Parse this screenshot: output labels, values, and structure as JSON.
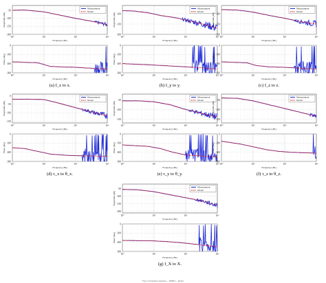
{
  "figure": {
    "caption_partial": "Fig. 6.  Frequency response ... MIMO ... model",
    "common": {
      "mag_ylabel": "Magnitude [dB]",
      "phase_ylabel": "Phase [deg]",
      "xlabel": "Frequency [Hz]",
      "legend": [
        "Measurement",
        "Model"
      ],
      "colors": {
        "measurement": "#1f2bd6",
        "model": "#e01818"
      },
      "x_range_log10": [
        0,
        3
      ],
      "x_tick_labels": [
        "10⁰",
        "10¹",
        "10²",
        "10³"
      ],
      "phase_ticks": [
        "0",
        "-100",
        "-200",
        "-300"
      ],
      "phase_range": [
        -300,
        0
      ]
    }
  },
  "chart_data": [
    {
      "id": "a",
      "type": "line",
      "caption": "(a)  f_x to x.",
      "mag_ticks": [
        "-50",
        "-100",
        "-150",
        "-200"
      ],
      "mag_range": [
        -200,
        -20
      ],
      "magnitude": [
        [
          0,
          -50
        ],
        [
          0.3,
          -48
        ],
        [
          0.5,
          -50
        ],
        [
          1.0,
          -60
        ],
        [
          1.5,
          -80
        ],
        [
          2.0,
          -100
        ],
        [
          2.5,
          -118
        ],
        [
          3.0,
          -140
        ]
      ],
      "phase": [
        [
          0,
          -180
        ],
        [
          0.8,
          -190
        ],
        [
          1.0,
          -210
        ],
        [
          1.2,
          -230
        ],
        [
          1.5,
          -235
        ],
        [
          2.0,
          -240
        ],
        [
          2.5,
          -250
        ],
        [
          3.0,
          -260
        ]
      ],
      "mag_noise_from": 2.6,
      "phase_noise_from": 2.6
    },
    {
      "id": "b",
      "type": "line",
      "caption": "(b)  f_y to y.",
      "mag_ticks": [
        "-100",
        "-150",
        "-200"
      ],
      "mag_range": [
        -200,
        -60
      ],
      "magnitude": [
        [
          0,
          -85
        ],
        [
          0.3,
          -86
        ],
        [
          0.8,
          -95
        ],
        [
          1.2,
          -108
        ],
        [
          1.7,
          -120
        ],
        [
          2.2,
          -138
        ],
        [
          2.6,
          -152
        ],
        [
          3.0,
          -170
        ]
      ],
      "phase": [
        [
          0,
          -200
        ],
        [
          1.0,
          -215
        ],
        [
          1.5,
          -225
        ],
        [
          2.0,
          -235
        ],
        [
          2.5,
          -245
        ],
        [
          3.0,
          -260
        ]
      ],
      "mag_noise_from": 1.9,
      "phase_noise_from": 2.2
    },
    {
      "id": "c",
      "type": "line",
      "caption": "(c)  f_z to z.",
      "mag_ticks": [
        "-100",
        "-150",
        "-200"
      ],
      "mag_range": [
        -200,
        -60
      ],
      "magnitude": [
        [
          0,
          -80
        ],
        [
          0.5,
          -82
        ],
        [
          1.0,
          -92
        ],
        [
          1.5,
          -108
        ],
        [
          2.0,
          -122
        ],
        [
          2.5,
          -138
        ],
        [
          3.0,
          -150
        ]
      ],
      "phase": [
        [
          0,
          -180
        ],
        [
          0.8,
          -190
        ],
        [
          1.1,
          -220
        ],
        [
          1.5,
          -235
        ],
        [
          2.0,
          -240
        ],
        [
          2.5,
          -250
        ],
        [
          3.0,
          -260
        ]
      ],
      "mag_noise_from": 2.3,
      "phase_noise_from": 2.3
    },
    {
      "id": "d",
      "type": "line",
      "caption": "(d)  τ_x to θ_x.",
      "mag_ticks": [
        "0",
        "-50",
        "-100",
        "-150"
      ],
      "mag_range": [
        -160,
        10
      ],
      "magnitude": [
        [
          0,
          -20
        ],
        [
          0.5,
          -20
        ],
        [
          1.0,
          -22
        ],
        [
          1.4,
          -40
        ],
        [
          1.8,
          -60
        ],
        [
          2.2,
          -80
        ],
        [
          2.6,
          -100
        ],
        [
          3.0,
          -118
        ]
      ],
      "phase": [
        [
          0,
          -150
        ],
        [
          0.4,
          -160
        ],
        [
          0.8,
          -190
        ],
        [
          1.2,
          -220
        ],
        [
          1.8,
          -235
        ],
        [
          3.0,
          -245
        ]
      ],
      "mag_noise_from": 2.2,
      "phase_noise_from": 2.2
    },
    {
      "id": "e",
      "type": "line",
      "caption": "(e)  τ_y to θ_y.",
      "mag_ticks": [
        "-50",
        "-100",
        "-150"
      ],
      "mag_range": [
        -170,
        -20
      ],
      "magnitude": [
        [
          0,
          -55
        ],
        [
          0.5,
          -55
        ],
        [
          1.0,
          -60
        ],
        [
          1.5,
          -75
        ],
        [
          2.0,
          -100
        ],
        [
          2.5,
          -120
        ],
        [
          3.0,
          -140
        ]
      ],
      "phase": [
        [
          0,
          -120
        ],
        [
          0.8,
          -135
        ],
        [
          1.2,
          -160
        ],
        [
          1.6,
          -200
        ],
        [
          2.0,
          -230
        ],
        [
          2.5,
          -240
        ],
        [
          3.0,
          -250
        ]
      ],
      "mag_noise_from": 2.1,
      "phase_noise_from": 2.0
    },
    {
      "id": "f",
      "type": "line",
      "caption": "(f)  τ_z to θ_z.",
      "mag_ticks": [
        "-50",
        "-100",
        "-150"
      ],
      "mag_range": [
        -170,
        -20
      ],
      "magnitude": [
        [
          0,
          -40
        ],
        [
          0.5,
          -42
        ],
        [
          1.0,
          -55
        ],
        [
          1.5,
          -75
        ],
        [
          2.0,
          -95
        ],
        [
          2.5,
          -115
        ],
        [
          3.0,
          -135
        ]
      ],
      "phase": [
        [
          0,
          -80
        ],
        [
          0.6,
          -110
        ],
        [
          1.0,
          -140
        ],
        [
          1.4,
          -170
        ],
        [
          1.8,
          -190
        ],
        [
          2.2,
          -200
        ],
        [
          3.0,
          -210
        ]
      ],
      "mag_noise_from": 2.8,
      "phase_noise_from": 2.9
    },
    {
      "id": "g",
      "type": "line",
      "caption": "(g)  f_X to X.",
      "mag_ticks": [
        "-50",
        "-100",
        "-150",
        "-200"
      ],
      "mag_range": [
        -210,
        -20
      ],
      "magnitude": [
        [
          0,
          -55
        ],
        [
          0.5,
          -58
        ],
        [
          1.0,
          -70
        ],
        [
          1.5,
          -90
        ],
        [
          2.0,
          -110
        ],
        [
          2.5,
          -130
        ],
        [
          3.0,
          -160
        ]
      ],
      "phase": [
        [
          0,
          -180
        ],
        [
          1.0,
          -185
        ],
        [
          1.5,
          -195
        ],
        [
          2.0,
          -210
        ],
        [
          2.5,
          -230
        ],
        [
          3.0,
          -250
        ]
      ],
      "mag_noise_from": 2.3,
      "phase_noise_from": 2.4
    }
  ]
}
